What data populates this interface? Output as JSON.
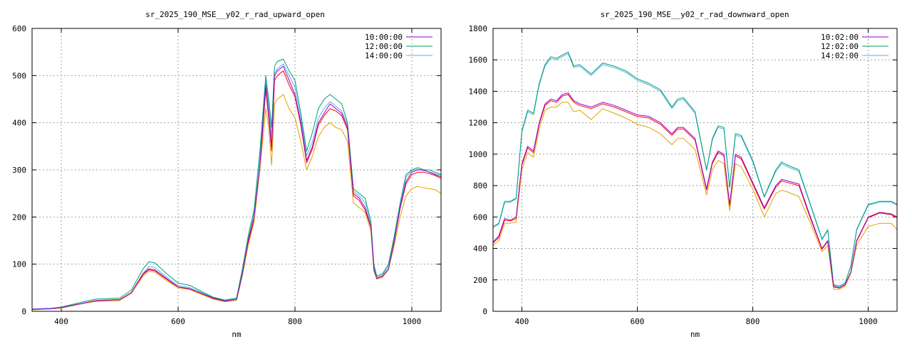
{
  "chart_data": [
    {
      "type": "line",
      "title": "sr_2025_190_MSE__y02_r_rad_upward_open",
      "xlabel": "nm",
      "ylabel": "",
      "xlim": [
        350,
        1050
      ],
      "ylim": [
        0,
        600
      ],
      "xticks": [
        400,
        600,
        800,
        1000
      ],
      "yticks": [
        0,
        100,
        200,
        300,
        400,
        500,
        600
      ],
      "grid": true,
      "legend": "top-right",
      "x": [
        350,
        380,
        400,
        420,
        440,
        460,
        480,
        500,
        520,
        540,
        550,
        560,
        580,
        600,
        620,
        640,
        660,
        680,
        700,
        710,
        720,
        730,
        740,
        750,
        755,
        760,
        765,
        770,
        780,
        790,
        800,
        810,
        820,
        830,
        840,
        850,
        860,
        870,
        880,
        890,
        900,
        910,
        920,
        930,
        935,
        940,
        950,
        960,
        970,
        980,
        990,
        1000,
        1010,
        1020,
        1030,
        1040,
        1050
      ],
      "series": [
        {
          "name": "10:00:00",
          "color": "#9400d3",
          "values": [
            4,
            6,
            8,
            13,
            18,
            23,
            24,
            25,
            40,
            80,
            90,
            88,
            70,
            52,
            48,
            38,
            28,
            22,
            25,
            80,
            150,
            200,
            310,
            480,
            420,
            350,
            500,
            510,
            520,
            490,
            460,
            400,
            320,
            350,
            400,
            420,
            440,
            430,
            420,
            390,
            250,
            240,
            220,
            180,
            90,
            70,
            75,
            90,
            150,
            220,
            275,
            295,
            300,
            300,
            295,
            290,
            285
          ]
        },
        {
          "name": "12:00:00",
          "color": "#009e73",
          "values": [
            5,
            6,
            9,
            15,
            21,
            26,
            27,
            28,
            45,
            90,
            105,
            103,
            80,
            60,
            55,
            42,
            30,
            24,
            28,
            90,
            160,
            215,
            340,
            500,
            450,
            390,
            520,
            530,
            535,
            510,
            490,
            420,
            340,
            380,
            430,
            450,
            460,
            450,
            440,
            400,
            260,
            250,
            240,
            190,
            100,
            75,
            80,
            100,
            160,
            230,
            290,
            300,
            305,
            300,
            300,
            295,
            290
          ]
        },
        {
          "name": "14:00:00",
          "color": "#56b4e9",
          "values": [
            4,
            5,
            8,
            13,
            18,
            23,
            24,
            25,
            40,
            80,
            95,
            93,
            73,
            55,
            50,
            40,
            29,
            23,
            26,
            85,
            155,
            210,
            330,
            490,
            440,
            370,
            505,
            515,
            525,
            500,
            475,
            410,
            330,
            360,
            410,
            430,
            445,
            435,
            425,
            395,
            255,
            245,
            230,
            185,
            95,
            72,
            78,
            95,
            155,
            225,
            285,
            298,
            302,
            298,
            296,
            292,
            288
          ]
        },
        {
          "name": "",
          "color": "#e69f00",
          "values": [
            3,
            5,
            7,
            12,
            17,
            21,
            22,
            23,
            38,
            75,
            85,
            83,
            65,
            50,
            46,
            36,
            26,
            20,
            24,
            75,
            140,
            190,
            300,
            430,
            390,
            310,
            440,
            450,
            460,
            430,
            410,
            360,
            300,
            330,
            370,
            390,
            400,
            390,
            385,
            360,
            230,
            220,
            210,
            170,
            85,
            68,
            72,
            88,
            140,
            200,
            245,
            260,
            265,
            262,
            260,
            258,
            250
          ]
        },
        {
          "name": "",
          "color": "#ff0000",
          "values": [
            4,
            5,
            7,
            12,
            18,
            22,
            23,
            24,
            38,
            78,
            88,
            86,
            68,
            51,
            47,
            37,
            27,
            21,
            24,
            78,
            145,
            195,
            305,
            470,
            410,
            340,
            490,
            500,
            510,
            480,
            455,
            395,
            315,
            345,
            395,
            415,
            430,
            425,
            415,
            385,
            245,
            235,
            215,
            178,
            88,
            70,
            74,
            88,
            148,
            218,
            270,
            290,
            295,
            295,
            292,
            288,
            282
          ]
        }
      ]
    },
    {
      "type": "line",
      "title": "sr_2025_190_MSE__y02_r_rad_downward_open",
      "xlabel": "nm",
      "ylabel": "",
      "xlim": [
        350,
        1050
      ],
      "ylim": [
        0,
        1800
      ],
      "xticks": [
        400,
        600,
        800,
        1000
      ],
      "yticks": [
        0,
        200,
        400,
        600,
        800,
        1000,
        1200,
        1400,
        1600,
        1800
      ],
      "grid": true,
      "legend": "top-right",
      "x": [
        350,
        360,
        370,
        380,
        390,
        400,
        410,
        420,
        430,
        440,
        450,
        460,
        470,
        480,
        490,
        500,
        520,
        540,
        560,
        580,
        600,
        620,
        640,
        660,
        670,
        680,
        700,
        720,
        730,
        740,
        750,
        760,
        770,
        780,
        800,
        820,
        840,
        850,
        860,
        880,
        900,
        920,
        930,
        940,
        950,
        960,
        970,
        980,
        1000,
        1020,
        1040,
        1050
      ],
      "series": [
        {
          "name": "10:02:00",
          "color": "#9400d3",
          "values": [
            440,
            480,
            590,
            580,
            600,
            940,
            1050,
            1020,
            1200,
            1320,
            1350,
            1340,
            1380,
            1390,
            1340,
            1320,
            1300,
            1330,
            1310,
            1280,
            1250,
            1240,
            1200,
            1130,
            1170,
            1170,
            1100,
            780,
            950,
            1020,
            1000,
            680,
            1000,
            980,
            820,
            660,
            800,
            840,
            830,
            810,
            600,
            400,
            450,
            160,
            150,
            170,
            250,
            450,
            600,
            630,
            620,
            600
          ]
        },
        {
          "name": "12:02:00",
          "color": "#009e73",
          "values": [
            540,
            560,
            700,
            700,
            720,
            1150,
            1280,
            1260,
            1450,
            1570,
            1620,
            1610,
            1630,
            1650,
            1560,
            1570,
            1510,
            1580,
            1560,
            1530,
            1480,
            1450,
            1410,
            1300,
            1350,
            1360,
            1270,
            900,
            1100,
            1180,
            1170,
            790,
            1130,
            1120,
            960,
            730,
            900,
            950,
            930,
            900,
            680,
            460,
            520,
            170,
            160,
            180,
            290,
            520,
            680,
            700,
            700,
            680
          ]
        },
        {
          "name": "14:02:00",
          "color": "#56b4e9",
          "values": [
            530,
            555,
            690,
            695,
            715,
            1140,
            1270,
            1250,
            1440,
            1560,
            1610,
            1600,
            1620,
            1640,
            1550,
            1560,
            1500,
            1570,
            1550,
            1520,
            1470,
            1440,
            1400,
            1290,
            1340,
            1350,
            1260,
            895,
            1090,
            1170,
            1160,
            785,
            1120,
            1110,
            950,
            725,
            890,
            940,
            920,
            890,
            675,
            455,
            515,
            168,
            158,
            178,
            285,
            515,
            675,
            695,
            695,
            675
          ]
        },
        {
          "name": "",
          "color": "#e69f00",
          "values": [
            420,
            450,
            560,
            560,
            570,
            900,
            1010,
            980,
            1160,
            1280,
            1300,
            1300,
            1330,
            1330,
            1270,
            1280,
            1220,
            1290,
            1260,
            1230,
            1190,
            1170,
            1130,
            1060,
            1100,
            1100,
            1030,
            740,
            900,
            960,
            940,
            640,
            940,
            920,
            780,
            600,
            750,
            770,
            760,
            730,
            560,
            380,
            420,
            140,
            140,
            160,
            240,
            420,
            540,
            560,
            560,
            520
          ]
        },
        {
          "name": "",
          "color": "#ff0000",
          "values": [
            435,
            470,
            580,
            575,
            590,
            930,
            1040,
            1010,
            1190,
            1310,
            1340,
            1330,
            1370,
            1380,
            1330,
            1310,
            1290,
            1320,
            1300,
            1270,
            1240,
            1230,
            1190,
            1120,
            1160,
            1160,
            1090,
            770,
            940,
            1010,
            990,
            670,
            990,
            970,
            810,
            650,
            790,
            830,
            820,
            800,
            590,
            395,
            445,
            155,
            148,
            168,
            248,
            445,
            595,
            625,
            615,
            595
          ]
        }
      ]
    }
  ]
}
